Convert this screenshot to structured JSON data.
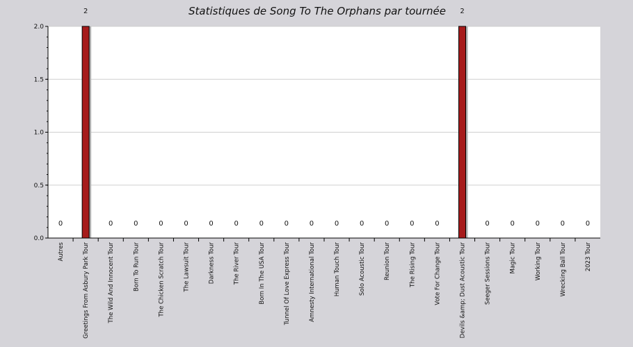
{
  "chart_data": {
    "type": "bar",
    "title": "Statistiques de Song To The Orphans par tournée",
    "xlabel": "",
    "ylabel": "",
    "ylim": [
      0,
      2.0
    ],
    "yticks": [
      "0.0",
      "0.5",
      "1.0",
      "1.5",
      "2.0"
    ],
    "grid": true,
    "bar_color": "#a61b1b",
    "categories": [
      "Autres",
      "Greetings From Asbury Park Tour",
      "The Wild And Innocent Tour",
      "Born To Run Tour",
      "The Chicken Scratch Tour",
      "The Lawsuit Tour",
      "Darkness Tour",
      "The River Tour",
      "Born In The USA Tour",
      "Tunnel Of Love Express Tour",
      "Amnesty International Tour",
      "Human Touch Tour",
      "Solo Acoustic Tour",
      "Reunion Tour",
      "The Rising Tour",
      "Vote For Change Tour",
      "Devils &amp; Dust Acoustic Tour",
      "Seeger Sessions Tour",
      "Magic Tour",
      "Working Tour",
      "Wrecking Ball Tour",
      "2023 Tour"
    ],
    "values": [
      0,
      2,
      0,
      0,
      0,
      0,
      0,
      0,
      0,
      0,
      0,
      0,
      0,
      0,
      0,
      0,
      2,
      0,
      0,
      0,
      0,
      0
    ],
    "value_labels": [
      "0",
      "2",
      "0",
      "0",
      "0",
      "0",
      "0",
      "0",
      "0",
      "0",
      "0",
      "0",
      "0",
      "0",
      "0",
      "0",
      "2",
      "0",
      "0",
      "0",
      "0",
      "0"
    ]
  }
}
